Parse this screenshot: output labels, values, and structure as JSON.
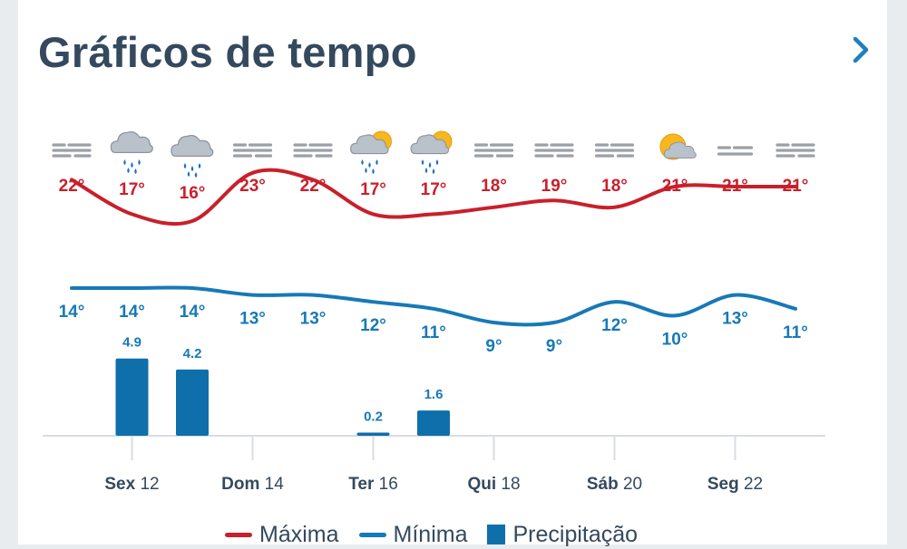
{
  "header": {
    "title": "Gráficos de tempo",
    "next_icon": "chevron-right-icon"
  },
  "colors": {
    "max": "#c8202b",
    "min": "#1779b7",
    "precip": "#0f6fab",
    "text": "#34495e",
    "axis": "#d9dde2"
  },
  "chart_data": {
    "type": "line",
    "icons": [
      "fog-icon",
      "rain-cloud-icon",
      "rain-cloud-icon",
      "fog-icon",
      "fog-icon",
      "sun-rain-icon",
      "sun-rain-icon",
      "fog-icon",
      "fog-icon",
      "fog-icon",
      "sun-cloud-icon",
      "light-fog-icon",
      "fog-icon"
    ],
    "max_labels": [
      "22°",
      "17°",
      "16°",
      "23°",
      "22°",
      "17°",
      "17°",
      "18°",
      "19°",
      "18°",
      "21°",
      "21°",
      "21°"
    ],
    "min_labels": [
      "14°",
      "14°",
      "14°",
      "13°",
      "13°",
      "12°",
      "11°",
      "9°",
      "9°",
      "12°",
      "10°",
      "13°",
      "11°"
    ],
    "max": [
      22,
      17,
      16,
      23,
      22,
      17,
      17,
      18,
      19,
      18,
      21,
      21,
      21
    ],
    "min": [
      14,
      14,
      14,
      13,
      13,
      12,
      11,
      9,
      9,
      12,
      10,
      13,
      11
    ],
    "precipitation": [
      0,
      4.9,
      4.2,
      0,
      0,
      0.2,
      1.6,
      0,
      0,
      0,
      0,
      0,
      0
    ],
    "precip_labels": [
      "",
      "4.9",
      "4.2",
      "",
      "",
      "0.2",
      "1.6",
      "",
      "",
      "",
      "",
      "",
      ""
    ],
    "x_ticks": [
      {
        "day": "Sex",
        "num": "12",
        "index": 1
      },
      {
        "day": "Dom",
        "num": "14",
        "index": 3
      },
      {
        "day": "Ter",
        "num": "16",
        "index": 5
      },
      {
        "day": "Qui",
        "num": "18",
        "index": 7
      },
      {
        "day": "Sáb",
        "num": "20",
        "index": 9
      },
      {
        "day": "Seg",
        "num": "22",
        "index": 11
      }
    ]
  },
  "legend": {
    "max": "Máxima",
    "min": "Mínima",
    "precip": "Precipitação"
  }
}
